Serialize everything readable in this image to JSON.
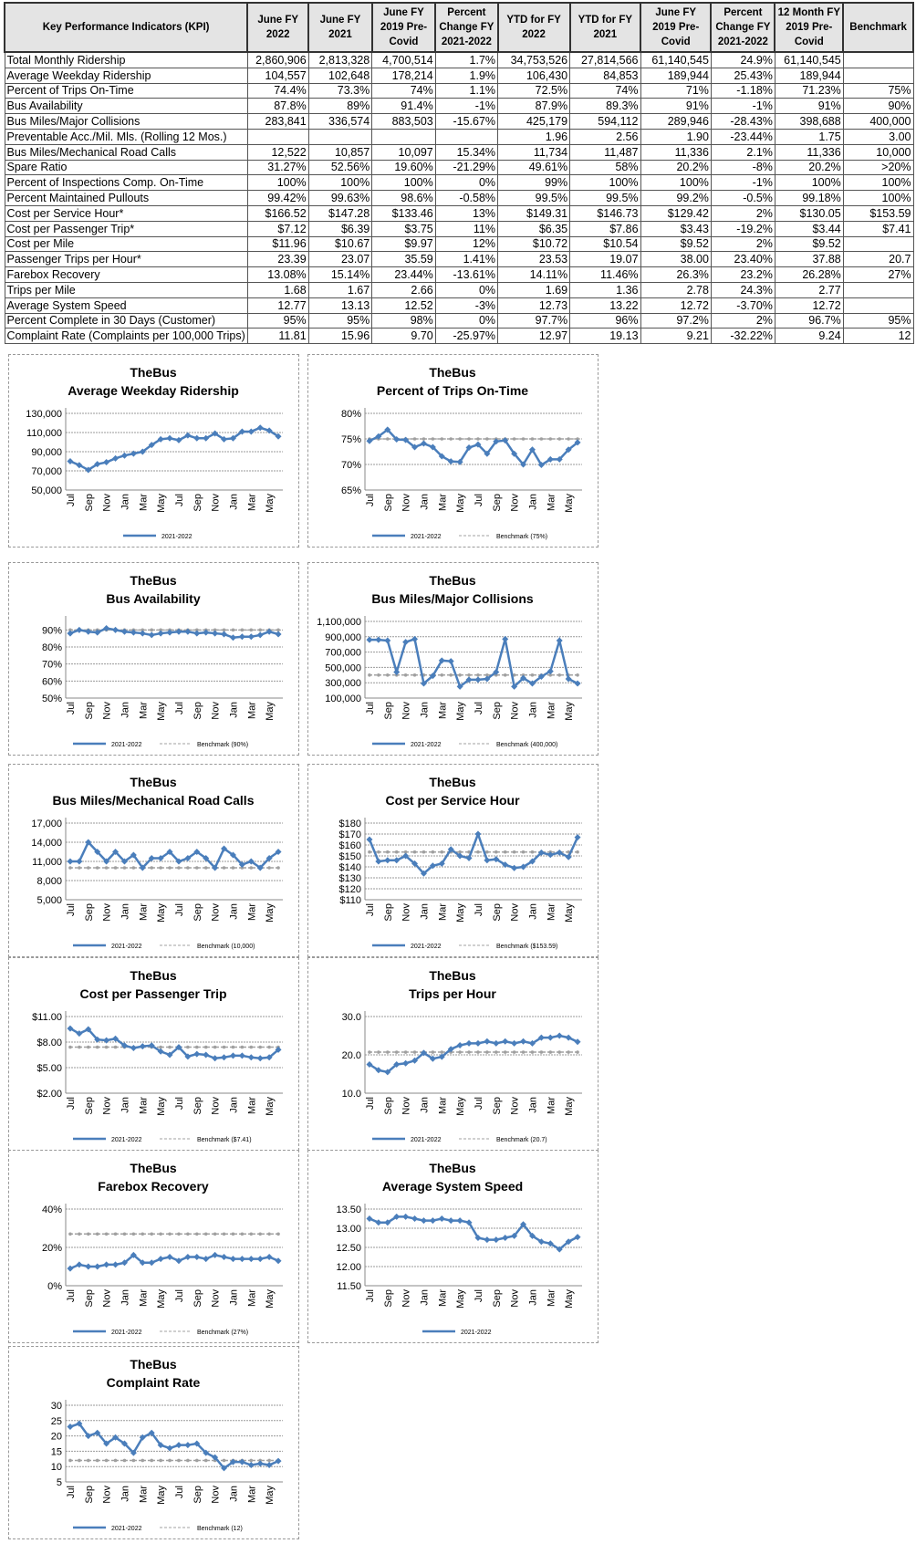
{
  "table": {
    "headers": [
      "Key Performance Indicators (KPI)",
      "June FY 2022",
      "June FY 2021",
      "June FY 2019 Pre-Covid",
      "Percent Change FY 2021-2022",
      "YTD for FY 2022",
      "YTD for FY 2021",
      "June FY 2019 Pre-Covid",
      "Percent Change FY 2021-2022",
      "12 Month FY 2019 Pre-Covid",
      "Benchmark"
    ],
    "rows": [
      [
        "Total Monthly Ridership",
        "2,860,906",
        "2,813,328",
        "4,700,514",
        "1.7%",
        "34,753,526",
        "27,814,566",
        "61,140,545",
        "24.9%",
        "61,140,545",
        ""
      ],
      [
        "Average Weekday Ridership",
        "104,557",
        "102,648",
        "178,214",
        "1.9%",
        "106,430",
        "84,853",
        "189,944",
        "25.43%",
        "189,944",
        ""
      ],
      [
        "Percent of Trips On-Time",
        "74.4%",
        "73.3%",
        "74%",
        "1.1%",
        "72.5%",
        "74%",
        "71%",
        "-1.18%",
        "71.23%",
        "75%"
      ],
      [
        "Bus Availability",
        "87.8%",
        "89%",
        "91.4%",
        "-1%",
        "87.9%",
        "89.3%",
        "91%",
        "-1%",
        "91%",
        "90%"
      ],
      [
        "Bus Miles/Major Collisions",
        "283,841",
        "336,574",
        "883,503",
        "-15.67%",
        "425,179",
        "594,112",
        "289,946",
        "-28.43%",
        "398,688",
        "400,000"
      ],
      [
        "Preventable Acc./Mil. Mls. (Rolling 12 Mos.)",
        "",
        "",
        "",
        "",
        "1.96",
        "2.56",
        "1.90",
        "-23.44%",
        "1.75",
        "3.00"
      ],
      [
        "Bus Miles/Mechanical Road Calls",
        "12,522",
        "10,857",
        "10,097",
        "15.34%",
        "11,734",
        "11,487",
        "11,336",
        "2.1%",
        "11,336",
        "10,000"
      ],
      [
        "Spare Ratio",
        "31.27%",
        "52.56%",
        "19.60%",
        "-21.29%",
        "49.61%",
        "58%",
        "20.2%",
        "-8%",
        "20.2%",
        ">20%"
      ],
      [
        "Percent of Inspections Comp. On-Time",
        "100%",
        "100%",
        "100%",
        "0%",
        "99%",
        "100%",
        "100%",
        "-1%",
        "100%",
        "100%"
      ],
      [
        "Percent Maintained Pullouts",
        "99.42%",
        "99.63%",
        "98.6%",
        "-0.58%",
        "99.5%",
        "99.5%",
        "99.2%",
        "-0.5%",
        "99.18%",
        "100%"
      ],
      [
        "Cost per Service Hour*",
        "$166.52",
        "$147.28",
        "$133.46",
        "13%",
        "$149.31",
        "$146.73",
        "$129.42",
        "2%",
        "$130.05",
        "$153.59"
      ],
      [
        "Cost per Passenger Trip*",
        "$7.12",
        "$6.39",
        "$3.75",
        "11%",
        "$6.35",
        "$7.86",
        "$3.43",
        "-19.2%",
        "$3.44",
        "$7.41"
      ],
      [
        "Cost per Mile",
        "$11.96",
        "$10.67",
        "$9.97",
        "12%",
        "$10.72",
        "$10.54",
        "$9.52",
        "2%",
        "$9.52",
        ""
      ],
      [
        "Passenger Trips per Hour*",
        "23.39",
        "23.07",
        "35.59",
        "1.41%",
        "23.53",
        "19.07",
        "38.00",
        "23.40%",
        "37.88",
        "20.7"
      ],
      [
        "Farebox Recovery",
        "13.08%",
        "15.14%",
        "23.44%",
        "-13.61%",
        "14.11%",
        "11.46%",
        "26.3%",
        "23.2%",
        "26.28%",
        "27%"
      ],
      [
        "Trips per Mile",
        "1.68",
        "1.67",
        "2.66",
        "0%",
        "1.69",
        "1.36",
        "2.78",
        "24.3%",
        "2.77",
        ""
      ],
      [
        "Average System Speed",
        "12.77",
        "13.13",
        "12.52",
        "-3%",
        "12.73",
        "13.22",
        "12.72",
        "-3.70%",
        "12.72",
        ""
      ],
      [
        "Percent Complete in 30 Days (Customer)",
        "95%",
        "95%",
        "98%",
        "0%",
        "97.7%",
        "96%",
        "97.2%",
        "2%",
        "96.7%",
        "95%"
      ],
      [
        "Complaint Rate (Complaints per 100,000 Trips)",
        "11.81",
        "15.96",
        "9.70",
        "-25.97%",
        "12.97",
        "19.13",
        "9.21",
        "-32.22%",
        "9.24",
        "12"
      ]
    ]
  },
  "colors": {
    "series": "#4a7ebb",
    "benchmark": "#a0a0a0",
    "grid": "#999999"
  },
  "chart_data": [
    {
      "type": "line",
      "title": "TheBus",
      "subtitle": "Average Weekday Ridership",
      "ylim": [
        50000,
        130000
      ],
      "ystep": 20000,
      "yfmt": "num",
      "series_name": "2021-2022",
      "values": [
        80000,
        76000,
        71000,
        77000,
        79000,
        83000,
        86000,
        88000,
        90000,
        97000,
        103000,
        104000,
        102000,
        107000,
        104000,
        104000,
        109000,
        103000,
        104000,
        111000,
        111000,
        115000,
        112000,
        106000
      ]
    },
    {
      "type": "line",
      "title": "TheBus",
      "subtitle": "Percent of Trips On-Time",
      "ylim": [
        65,
        80
      ],
      "ystep": 5,
      "yfmt": "pct",
      "series_name": "2021-2022",
      "values": [
        74.6,
        75.5,
        76.8,
        74.9,
        74.8,
        73.4,
        74.1,
        73.4,
        71.6,
        70.6,
        70.5,
        73.3,
        73.9,
        72.1,
        74.5,
        74.7,
        72.1,
        70.0,
        72.9,
        69.9,
        71.0,
        71.0,
        72.9,
        74.3
      ],
      "benchmark_name": "Benchmark (75%)",
      "benchmark": 75
    },
    {
      "type": "line",
      "title": "TheBus",
      "subtitle": "Bus Availability",
      "ylim": [
        50,
        95
      ],
      "yticks": [
        50,
        60,
        70,
        80,
        90
      ],
      "yfmt": "pct",
      "series_name": "2021-2022",
      "values": [
        88,
        90,
        89,
        88.5,
        91,
        90,
        89,
        88.5,
        88,
        87,
        88,
        88.5,
        89,
        89,
        88,
        88.5,
        88,
        87.5,
        85.5,
        86,
        86,
        87,
        89,
        87.5
      ],
      "benchmark_name": "Benchmark (90%)",
      "benchmark": 90
    },
    {
      "type": "line",
      "title": "TheBus",
      "subtitle": "Bus Miles/Major Collisions",
      "ylim": [
        100000,
        1100000
      ],
      "ystep": 200000,
      "yfmt": "num",
      "series_name": "2021-2022",
      "values": [
        860000,
        860000,
        850000,
        440000,
        830000,
        870000,
        290000,
        390000,
        590000,
        580000,
        250000,
        340000,
        340000,
        350000,
        440000,
        870000,
        250000,
        360000,
        290000,
        380000,
        450000,
        850000,
        350000,
        290000
      ],
      "benchmark_name": "Benchmark (400,000)",
      "benchmark": 400000
    },
    {
      "type": "line",
      "title": "TheBus",
      "subtitle": "Bus Miles/Mechanical  Road Calls",
      "ylim": [
        5000,
        17000
      ],
      "ystep": 3000,
      "yfmt": "num",
      "series_name": "2021-2022",
      "values": [
        11000,
        11000,
        14000,
        12500,
        11000,
        12500,
        11000,
        12000,
        10000,
        11500,
        11500,
        12500,
        11000,
        11500,
        12500,
        11500,
        10000,
        13000,
        12000,
        10500,
        11000,
        10000,
        11500,
        12500
      ],
      "benchmark_name": "Benchmark (10,000)",
      "benchmark": 10000
    },
    {
      "type": "line",
      "title": "TheBus",
      "subtitle": "Cost per Service Hour",
      "ylim": [
        110,
        180
      ],
      "ystep": 10,
      "yfmt": "usd0",
      "series_name": "2021-2022",
      "values": [
        165,
        145,
        146,
        146,
        150,
        143,
        134,
        141,
        143,
        156,
        150,
        148,
        170,
        146,
        147,
        142,
        139,
        140,
        145,
        153,
        151,
        153,
        149,
        167
      ],
      "benchmark_name": "Benchmark ($153.59)",
      "benchmark": 153.59
    },
    {
      "type": "line",
      "title": "TheBus",
      "subtitle": "Cost per Passenger Trip",
      "ylim": [
        2,
        11
      ],
      "ystep": 3,
      "yfmt": "usd2",
      "series_name": "2021-2022",
      "values": [
        9.6,
        9.0,
        9.5,
        8.3,
        8.2,
        8.4,
        7.6,
        7.3,
        7.5,
        7.6,
        6.9,
        6.5,
        7.4,
        6.3,
        6.6,
        6.5,
        6.1,
        6.2,
        6.4,
        6.4,
        6.2,
        6.1,
        6.2,
        7.1
      ],
      "benchmark_name": "Benchmark ($7.41)",
      "benchmark": 7.41
    },
    {
      "type": "line",
      "title": "TheBus",
      "subtitle": "Trips per Hour",
      "ylim": [
        10,
        30
      ],
      "ystep": 10,
      "yfmt": "d1",
      "series_name": "2021-2022",
      "values": [
        17.5,
        16,
        15.5,
        17.5,
        17.8,
        18.5,
        20.5,
        19,
        19.5,
        21.5,
        22.5,
        23,
        23,
        23.5,
        23,
        23.5,
        23,
        23.5,
        23,
        24.5,
        24.5,
        25,
        24.5,
        23.4
      ],
      "benchmark_name": "Benchmark (20.7)",
      "benchmark": 20.7
    },
    {
      "type": "line",
      "title": "TheBus",
      "subtitle": "Farebox Recovery",
      "ylim": [
        0,
        40
      ],
      "ystep": 20,
      "yfmt": "pct",
      "series_name": "2021-2022",
      "values": [
        9,
        11,
        10,
        10,
        11,
        11,
        12,
        16,
        12,
        12,
        14,
        15,
        13,
        15,
        15,
        14,
        16,
        15,
        14,
        14,
        14,
        14,
        15,
        13
      ],
      "benchmark_name": "Benchmark (27%)",
      "benchmark": 27
    },
    {
      "type": "line",
      "title": "TheBus",
      "subtitle": "Average System Speed",
      "ylim": [
        11.5,
        13.5
      ],
      "ystep": 0.5,
      "yfmt": "d2",
      "series_name": "2021-2022",
      "values": [
        13.25,
        13.15,
        13.15,
        13.3,
        13.3,
        13.25,
        13.2,
        13.2,
        13.25,
        13.2,
        13.2,
        13.15,
        12.75,
        12.7,
        12.7,
        12.75,
        12.8,
        13.1,
        12.8,
        12.65,
        12.6,
        12.45,
        12.65,
        12.77
      ]
    },
    {
      "type": "line",
      "title": "TheBus",
      "subtitle": "Complaint Rate",
      "ylim": [
        5,
        30
      ],
      "ystep": 5,
      "yfmt": "int",
      "series_name": "2021-2022",
      "values": [
        23,
        24,
        20,
        21,
        17.5,
        19.5,
        17.5,
        14.5,
        19.5,
        21,
        17,
        16,
        17,
        17,
        17.5,
        14.5,
        13,
        9.5,
        11.5,
        11.5,
        10.5,
        11,
        10.5,
        11.8
      ],
      "benchmark_name": "Benchmark (12)",
      "benchmark": 12
    }
  ],
  "x_labels": [
    "Jul",
    "Sep",
    "Nov",
    "Jan",
    "Mar",
    "May",
    "Jul",
    "Sep",
    "Nov",
    "Jan",
    "Mar",
    "May"
  ]
}
